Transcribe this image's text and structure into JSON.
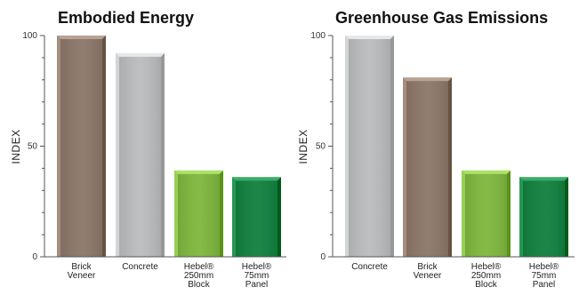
{
  "chart_data": [
    {
      "type": "bar",
      "title": "Embodied Energy",
      "ylabel": "INDEX",
      "ylim": [
        0,
        100
      ],
      "yticks": [
        "0",
        "50",
        "100"
      ],
      "categories": [
        [
          "Brick",
          "Veneer"
        ],
        [
          "Concrete"
        ],
        [
          "Hebel®",
          "250mm",
          "Block"
        ],
        [
          "Hebel®",
          "75mm",
          "Panel"
        ]
      ],
      "values": [
        100,
        92,
        39,
        36
      ],
      "colors": [
        "#8a7566",
        "#b9bbbd",
        "#7db63a",
        "#0d7f3b"
      ]
    },
    {
      "type": "bar",
      "title": "Greenhouse Gas Emissions",
      "ylabel": "INDEX",
      "ylim": [
        0,
        100
      ],
      "yticks": [
        "0",
        "50",
        "100"
      ],
      "categories": [
        [
          "Concrete"
        ],
        [
          "Brick",
          "Veneer"
        ],
        [
          "Hebel®",
          "250mm",
          "Block"
        ],
        [
          "Hebel®",
          "75mm",
          "Panel"
        ]
      ],
      "values": [
        100,
        81,
        39,
        36
      ],
      "colors": [
        "#b9bbbd",
        "#8a7566",
        "#7db63a",
        "#0d7f3b"
      ]
    }
  ]
}
